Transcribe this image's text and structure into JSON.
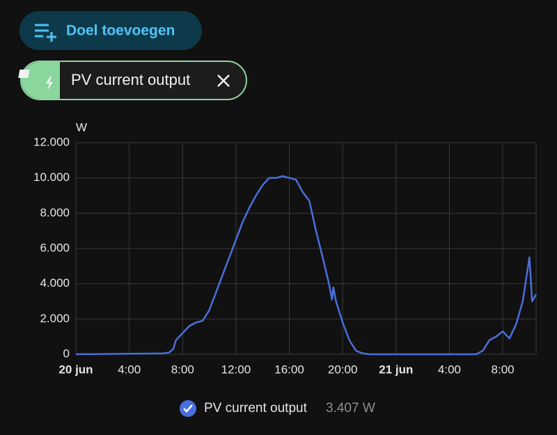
{
  "toolbar": {
    "add_target": "Doel toevoegen"
  },
  "chip": {
    "label": "PV current output"
  },
  "chart_data": {
    "type": "line",
    "y_axis_label": "W",
    "x": [
      0,
      6.5,
      7,
      7.3,
      7.5,
      8,
      8.5,
      9,
      9.5,
      10,
      10.5,
      11,
      11.5,
      12,
      12.5,
      13,
      13.5,
      14,
      14.5,
      15,
      15.5,
      16,
      16.5,
      17,
      17.5,
      18,
      18.5,
      19,
      19.2,
      19.3,
      19.5,
      20,
      20.5,
      21,
      21.5,
      22,
      30,
      30.5,
      31,
      31.5,
      32,
      32.5,
      33,
      33.5,
      33.8,
      34,
      34.2,
      34.5
    ],
    "series": [
      {
        "name": "PV current output",
        "color": "#4a6fdc",
        "values": [
          0,
          50,
          100,
          300,
          800,
          1200,
          1600,
          1800,
          1900,
          2500,
          3500,
          4500,
          5500,
          6500,
          7500,
          8300,
          9000,
          9600,
          10000,
          10000,
          10100,
          10000,
          9900,
          9200,
          8700,
          7000,
          5500,
          3900,
          3100,
          3800,
          3000,
          1800,
          800,
          200,
          50,
          0,
          0,
          200,
          800,
          1000,
          1300,
          900,
          1700,
          3000,
          4500,
          5500,
          3000,
          3407
        ]
      }
    ],
    "legend_value": "3.407 W",
    "xlim": [
      0,
      34.5
    ],
    "xticks": [
      {
        "value": 0,
        "label": "20 jun"
      },
      {
        "value": 4,
        "label": "4:00"
      },
      {
        "value": 8,
        "label": "8:00"
      },
      {
        "value": 12,
        "label": "12:00"
      },
      {
        "value": 16,
        "label": "16:00"
      },
      {
        "value": 20,
        "label": "20:00"
      },
      {
        "value": 24,
        "label": "21 jun"
      },
      {
        "value": 28,
        "label": "4:00"
      },
      {
        "value": 32,
        "label": "8:00"
      }
    ],
    "ylim": [
      0,
      12000
    ],
    "yticks": [
      0,
      {
        "value": 2000,
        "label": "2.000"
      },
      {
        "value": 4000,
        "label": "4.000"
      },
      {
        "value": 6000,
        "label": "6.000"
      },
      {
        "value": 8000,
        "label": "8.000"
      },
      {
        "value": 10000,
        "label": "10.000"
      },
      {
        "value": 12000,
        "label": "12.000"
      }
    ],
    "grid": true
  }
}
